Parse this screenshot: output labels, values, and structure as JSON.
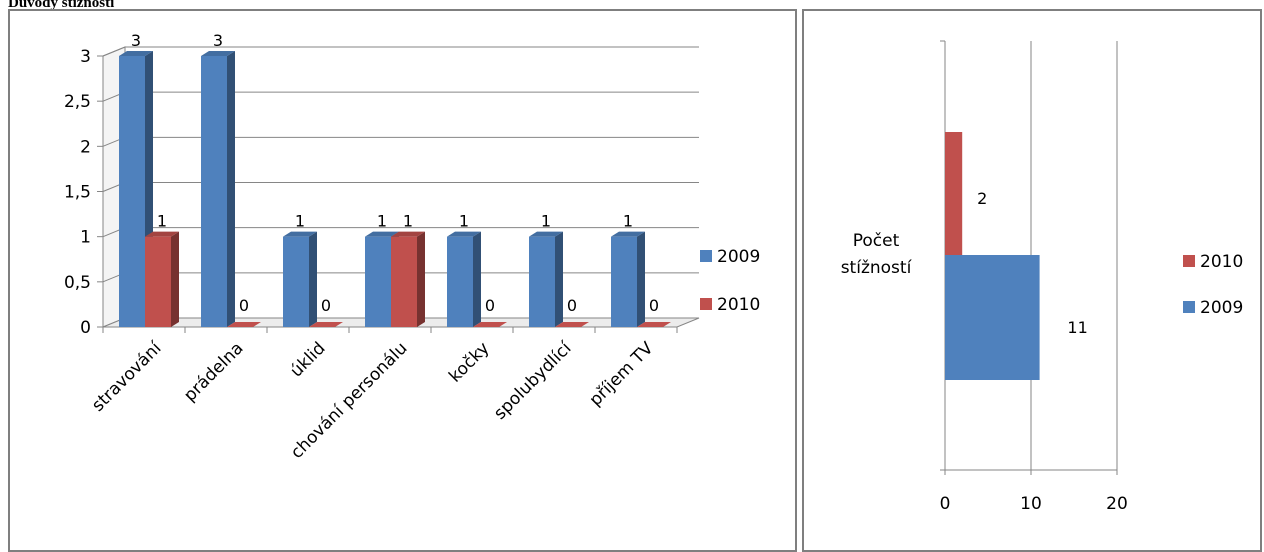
{
  "page_title": "Důvody stížností",
  "chart_data": [
    {
      "type": "bar",
      "categories": [
        "stravování",
        "prádelna",
        "úklid",
        "chování personálu",
        "kočky",
        "spolubydlící",
        "příjem TV"
      ],
      "series": [
        {
          "name": "2009",
          "values": [
            3,
            3,
            1,
            1,
            1,
            1,
            1
          ],
          "color": "#4f81bd"
        },
        {
          "name": "2010",
          "values": [
            1,
            0,
            0,
            1,
            0,
            0,
            0
          ],
          "color": "#c0504d"
        }
      ],
      "yticks": [
        "0",
        "0,5",
        "1",
        "1,5",
        "2",
        "2,5",
        "3"
      ],
      "ylim": [
        0,
        3
      ],
      "grid": true,
      "style": "3d-column",
      "legend": "right"
    },
    {
      "type": "bar",
      "orientation": "horizontal",
      "categories": [
        "Počet stížností"
      ],
      "series": [
        {
          "name": "2010",
          "values": [
            2
          ],
          "color": "#c0504d"
        },
        {
          "name": "2009",
          "values": [
            11
          ],
          "color": "#4f81bd"
        }
      ],
      "xticks": [
        "0",
        "10",
        "20"
      ],
      "xlim": [
        0,
        20
      ],
      "grid": true,
      "legend": "right"
    }
  ]
}
